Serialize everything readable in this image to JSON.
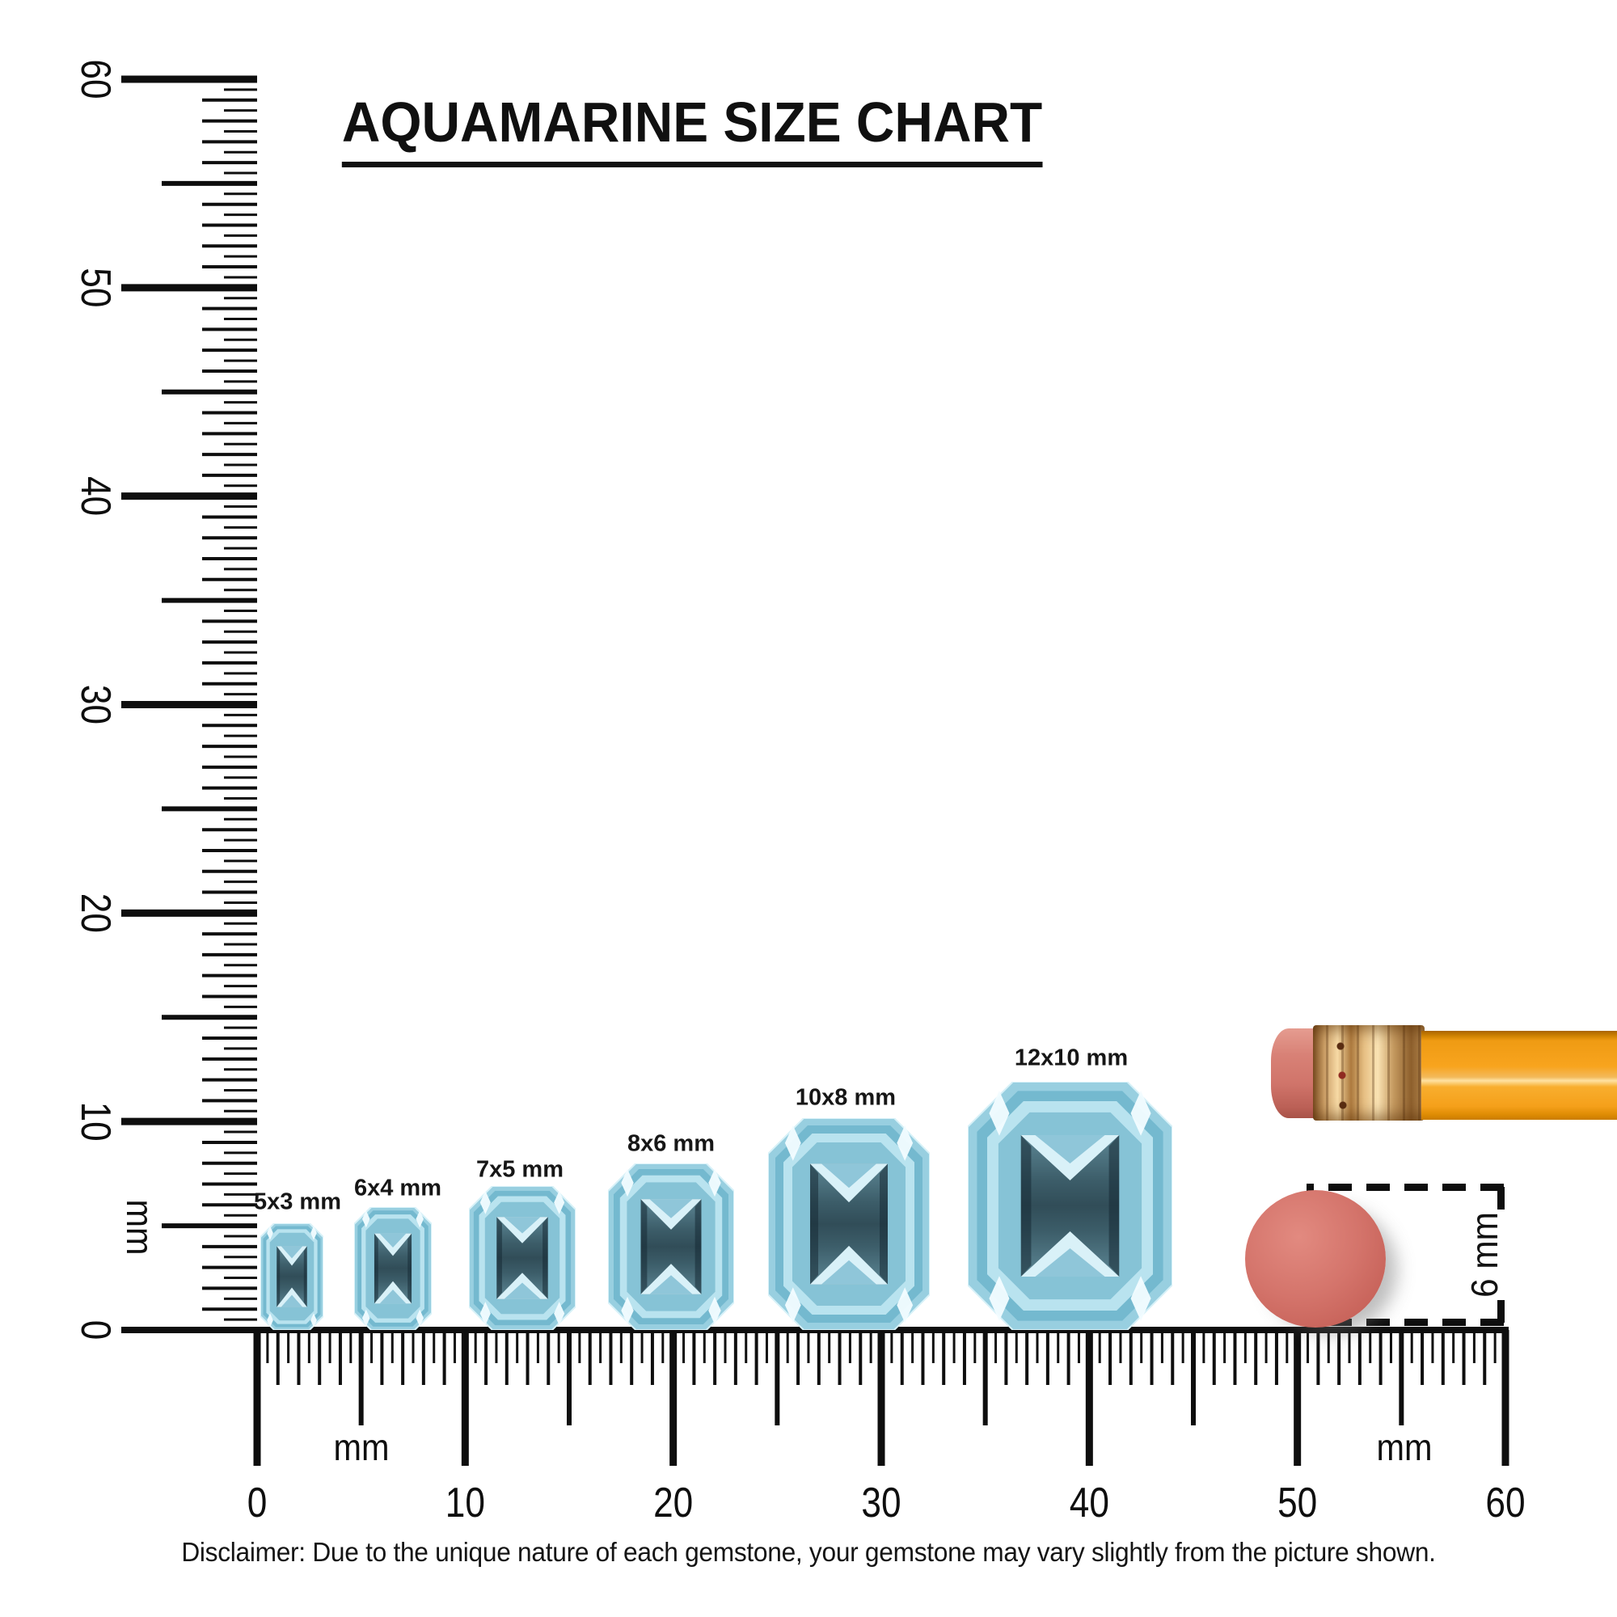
{
  "title": {
    "text": "AQUAMARINE SIZE CHART"
  },
  "rulers": {
    "unit": "mm",
    "left": {
      "numbers": [
        "0",
        "10",
        "20",
        "30",
        "40",
        "50",
        "60"
      ],
      "unit_label": "mm"
    },
    "bottom": {
      "numbers": [
        "0",
        "10",
        "20",
        "30",
        "40",
        "50",
        "60"
      ],
      "unit_labels": [
        "mm",
        "mm"
      ]
    }
  },
  "gems": [
    {
      "label": "5x3 mm",
      "length_mm": 5,
      "width_mm": 3
    },
    {
      "label": "6x4 mm",
      "length_mm": 6,
      "width_mm": 4
    },
    {
      "label": "7x5 mm",
      "length_mm": 7,
      "width_mm": 5
    },
    {
      "label": "8x6 mm",
      "length_mm": 8,
      "width_mm": 6
    },
    {
      "label": "10x8 mm",
      "length_mm": 10,
      "width_mm": 8
    },
    {
      "label": "12x10 mm",
      "length_mm": 12,
      "width_mm": 10
    }
  ],
  "measurement": {
    "label": "6 mm"
  },
  "disclaimer": {
    "text": "Disclaimer: Due to the unique nature of each gemstone, your gemstone may vary slightly from the picture shown."
  },
  "colors": {
    "ink": "#101010",
    "gem_light": "#b9e3ef",
    "gem_mid": "#74b9cf",
    "gem_dark": "#324e59",
    "eraser_pink": "#d4746b",
    "pencil_orange": "#f8a41e",
    "ferrule_gold": "#e7c084"
  },
  "chart_data": {
    "type": "table",
    "title": "AQUAMARINE SIZE CHART",
    "categories": [
      "5x3 mm",
      "6x4 mm",
      "7x5 mm",
      "8x6 mm",
      "10x8 mm",
      "12x10 mm"
    ],
    "series": [
      {
        "name": "length_mm",
        "values": [
          5,
          6,
          7,
          8,
          10,
          12
        ]
      },
      {
        "name": "width_mm",
        "values": [
          3,
          4,
          5,
          6,
          8,
          10
        ]
      }
    ],
    "axes": {
      "bottom_ruler_mm": [
        0,
        60
      ],
      "left_ruler_mm": [
        0,
        60
      ],
      "unit": "mm",
      "tick_step_mm": 0.5,
      "number_step_mm": 10
    },
    "reference_objects": [
      {
        "name": "pencil",
        "note": "shown for scale"
      },
      {
        "name": "pencil eraser (top view)",
        "diameter_label": "6 mm"
      }
    ]
  }
}
